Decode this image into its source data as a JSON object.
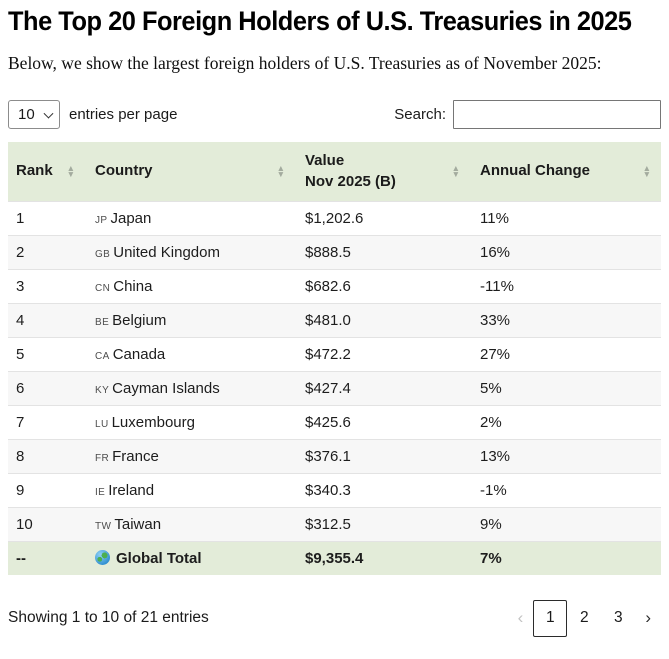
{
  "page": {
    "title": "The Top 20 Foreign Holders of U.S. Treasuries in 2025",
    "intro": "Below, we show the largest foreign holders of U.S. Treasuries as of November 2025:"
  },
  "controls": {
    "entries_value": "10",
    "entries_label": "entries per page",
    "search_label": "Search:",
    "search_value": ""
  },
  "icons": {
    "sort_asc": "▲",
    "sort_desc": "▼",
    "globe": "globe-icon"
  },
  "table": {
    "headers": {
      "rank": "Rank",
      "country": "Country",
      "value_line1": "Value",
      "value_line2": "Nov 2025 (B)",
      "change": "Annual Change"
    },
    "rows": [
      {
        "rank": "1",
        "code": "JP",
        "country": "Japan",
        "value": "$1,202.6",
        "change": "11%"
      },
      {
        "rank": "2",
        "code": "GB",
        "country": "United Kingdom",
        "value": "$888.5",
        "change": "16%"
      },
      {
        "rank": "3",
        "code": "CN",
        "country": "China",
        "value": "$682.6",
        "change": "-11%"
      },
      {
        "rank": "4",
        "code": "BE",
        "country": "Belgium",
        "value": "$481.0",
        "change": "33%"
      },
      {
        "rank": "5",
        "code": "CA",
        "country": "Canada",
        "value": "$472.2",
        "change": "27%"
      },
      {
        "rank": "6",
        "code": "KY",
        "country": "Cayman Islands",
        "value": "$427.4",
        "change": "5%"
      },
      {
        "rank": "7",
        "code": "LU",
        "country": "Luxembourg",
        "value": "$425.6",
        "change": "2%"
      },
      {
        "rank": "8",
        "code": "FR",
        "country": "France",
        "value": "$376.1",
        "change": "13%"
      },
      {
        "rank": "9",
        "code": "IE",
        "country": "Ireland",
        "value": "$340.3",
        "change": "-1%"
      },
      {
        "rank": "10",
        "code": "TW",
        "country": "Taiwan",
        "value": "$312.5",
        "change": "9%"
      }
    ],
    "total": {
      "rank": "--",
      "label": "Global Total",
      "value": "$9,355.4",
      "change": "7%"
    }
  },
  "footer": {
    "info": "Showing 1 to 10 of 21 entries"
  },
  "pagination": {
    "prev": "‹",
    "pages": [
      "1",
      "2",
      "3"
    ],
    "current": "1",
    "next": "›"
  },
  "colors": {
    "header_bg": "#e3ecd9",
    "stripe_bg": "#f7f7f7",
    "row_border": "#e3e3e3"
  }
}
